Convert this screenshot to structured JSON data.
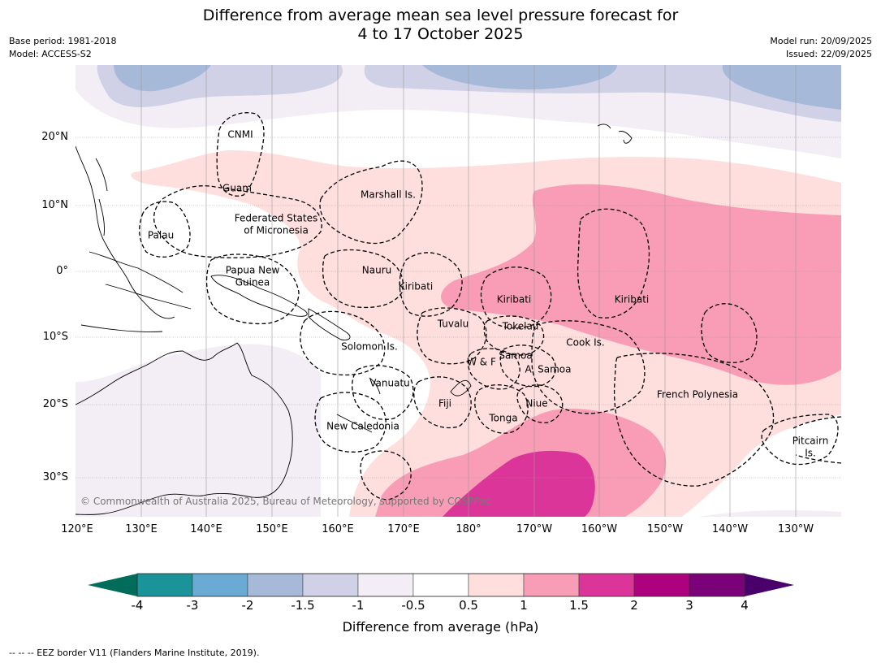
{
  "header": {
    "title_line1": "Difference from average mean sea level pressure forecast for",
    "title_line2": "4 to 17 October 2025",
    "base_period": "Base period: 1981-2018",
    "model": "Model: ACCESS-S2",
    "model_run": "Model run: 20/09/2025",
    "issued": "Issued: 22/09/2025"
  },
  "axes": {
    "longitude_labels": [
      "120°E",
      "130°E",
      "140°E",
      "150°E",
      "160°E",
      "170°E",
      "180°",
      "170°W",
      "160°W",
      "150°W",
      "140°W",
      "130°W"
    ],
    "latitude_labels": [
      "20°N",
      "10°N",
      "0°",
      "10°S",
      "20°S",
      "30°S"
    ]
  },
  "regions": {
    "cnmi": "CNMI",
    "guam": "Guam",
    "marshall": "Marshall Is.",
    "micronesia_1": "Federated States",
    "micronesia_2": "of Micronesia",
    "palau": "Palau",
    "png_1": "Papua New",
    "png_2": "Guinea",
    "nauru": "Nauru",
    "kiribati_west": "Kiribati",
    "kiribati_central": "Kiribati",
    "kiribati_east": "Kiribati",
    "tuvalu": "Tuvalu",
    "tokelau": "Tokelau",
    "cook": "Cook Is.",
    "solomon": "Solomon Is.",
    "samoa": "Samoa",
    "wf": "W & F",
    "asamoa": "A. Samoa",
    "vanuatu": "Vanuatu",
    "fiji": "Fiji",
    "niue": "Niue",
    "tonga": "Tonga",
    "newcal": "New Caledonia",
    "frpoly": "French Polynesia",
    "pitcairn_1": "Pitcairn",
    "pitcairn_2": "Is."
  },
  "copyright": "© Commonwealth of Australia 2025, Bureau of Meteorology, supported by COSPPac",
  "colorbar": {
    "title": "Difference from average (hPa)",
    "labels": [
      "-4",
      "-3",
      "-2",
      "-1.5",
      "-1",
      "-0.5",
      "0.5",
      "1",
      "1.5",
      "2",
      "3",
      "4"
    ],
    "colors": [
      "#1a9399",
      "#6aabd5",
      "#a7b9d9",
      "#d0d1e6",
      "#f3edf5",
      "#ffffff",
      "#ffdede",
      "#f89db5",
      "#dc3599",
      "#ae017e",
      "#7a0177"
    ],
    "under_color": "#016c59",
    "over_color": "#49006a"
  },
  "footnote": "--  --  -- EEZ border V11 (Flanders Marine Institute, 2019)."
}
